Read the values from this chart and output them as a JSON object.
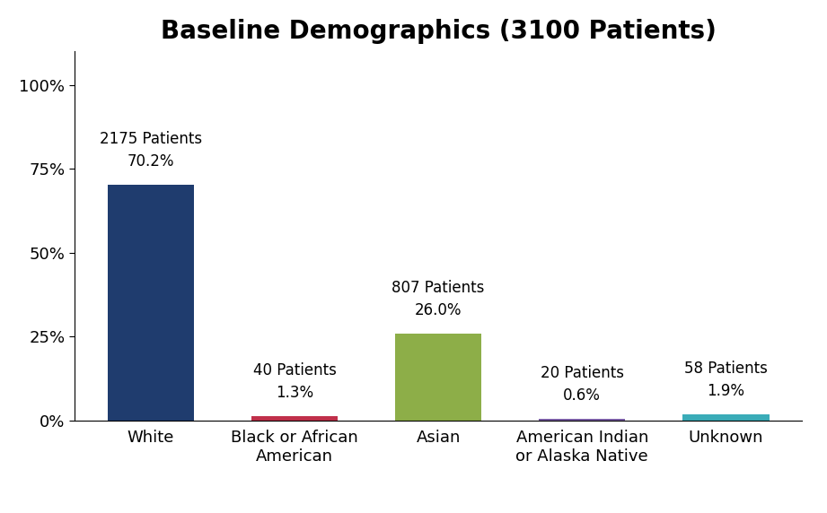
{
  "title": "Baseline Demographics (3100 Patients)",
  "categories": [
    "White",
    "Black or African\nAmerican",
    "Asian",
    "American Indian\nor Alaska Native",
    "Unknown"
  ],
  "values": [
    70.2,
    1.3,
    26.0,
    0.6,
    1.9
  ],
  "bar_colors": [
    "#1F3C6E",
    "#C0304A",
    "#8DAE48",
    "#7B5EA7",
    "#3AACB8"
  ],
  "annotations": [
    "2175 Patients\n70.2%",
    "40 Patients\n1.3%",
    "807 Patients\n26.0%",
    "20 Patients\n0.6%",
    "58 Patients\n1.9%"
  ],
  "ylim": [
    0,
    110
  ],
  "yticks": [
    0,
    25,
    50,
    75,
    100
  ],
  "ytick_labels": [
    "0%",
    "25%",
    "50%",
    "75%",
    "100%"
  ],
  "background_color": "#ffffff",
  "title_fontsize": 20,
  "tick_fontsize": 13,
  "annotation_fontsize": 12,
  "bar_width": 0.6
}
